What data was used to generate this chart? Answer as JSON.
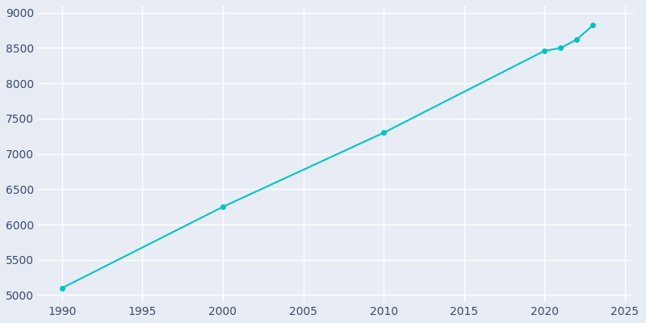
{
  "years": [
    1990,
    2000,
    2010,
    2020,
    2021,
    2022,
    2023
  ],
  "population": [
    5100,
    6250,
    7300,
    8460,
    8500,
    8620,
    8820
  ],
  "line_color": "#00C4C4",
  "marker_color": "#00C4C4",
  "bg_color": "#E8EDF5",
  "plot_bg_color": "#E8EDF5",
  "grid_color": "#ffffff",
  "tick_color": "#3B4A6B",
  "xlim": [
    1988.5,
    2025.5
  ],
  "ylim": [
    4900,
    9100
  ],
  "xticks": [
    1990,
    1995,
    2000,
    2005,
    2010,
    2015,
    2020,
    2025
  ],
  "yticks": [
    5000,
    5500,
    6000,
    6500,
    7000,
    7500,
    8000,
    8500,
    9000
  ]
}
